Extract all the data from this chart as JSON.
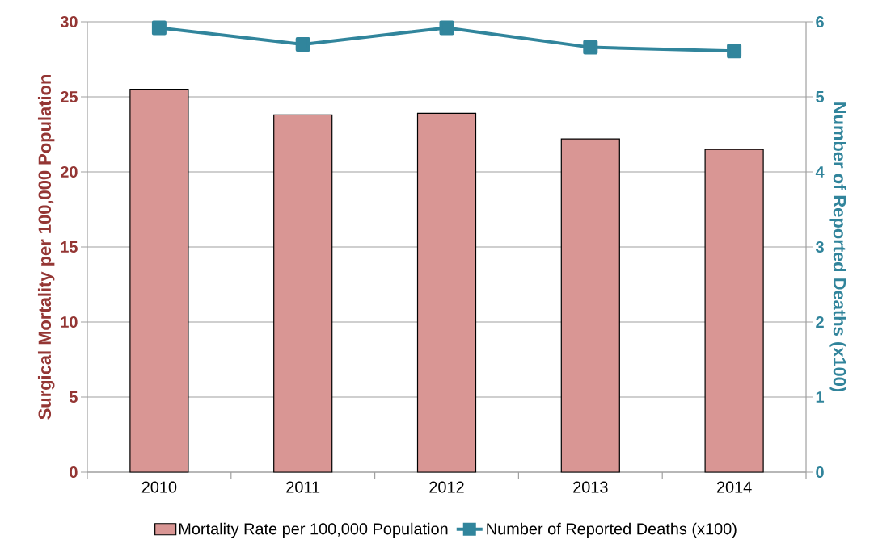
{
  "chart_data": {
    "type": "bar",
    "categories": [
      "2010",
      "2011",
      "2012",
      "2013",
      "2014"
    ],
    "ylabel": "Surgical Mortality per 100,000 Population",
    "y2label": "Number of Reported Deaths (x100)",
    "ylim": [
      0,
      30
    ],
    "yticks": [
      0,
      5,
      10,
      15,
      20,
      25,
      30
    ],
    "y2lim": [
      0,
      6
    ],
    "y2ticks": [
      0,
      1,
      2,
      3,
      4,
      5,
      6
    ],
    "grid": "y",
    "legend": "bottom",
    "series": [
      {
        "name": "Mortality Rate per 100,000 Population",
        "color": "#d99694",
        "values": [
          25.5,
          23.8,
          23.9,
          22.2,
          21.5
        ]
      },
      {
        "name": "Number of Reported Deaths (x100)",
        "type": "line",
        "axis": "y2",
        "color": "#31859c",
        "marker": "square",
        "values": [
          5.92,
          5.7,
          5.92,
          5.66,
          5.61
        ]
      }
    ]
  }
}
